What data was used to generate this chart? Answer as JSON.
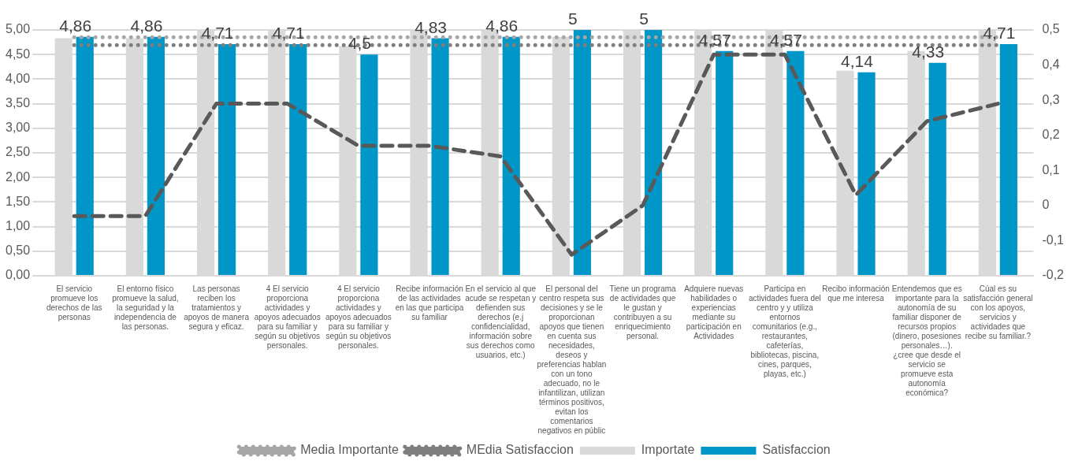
{
  "chart_data": {
    "type": "bar",
    "categories": [
      "El servicio promueve los derechos de las personas",
      "El entorno físico promueve la salud, la seguridad y la independencia de las personas.",
      "Las personas reciben los tratamientos y apoyos de manera segura y eficaz.",
      "4 El servicio proporciona actividades y apoyos adecuados para su familiar y según su objetivos personales.",
      "4 El servicio proporciona actividades y apoyos adecuados para su familiar y según su objetivos personales.",
      "Recibe información de las actividades en las que participa su familiar",
      "En el servicio al que acude se respetan y defienden sus derechos (e.j confidencialidad, información sobre sus derechos como usuarios, etc.)",
      "El personal del centro respeta sus decisiones y se le proporcionan apoyos que tienen en cuenta sus necesidades, deseos y preferencias hablan con un tono adecuado, no le infantilizan, utilizan términos positivos, evitan los comentarios negativos en públic",
      "Tiene un programa de actividades que le gustan y contribuyen a su enriquecimiento personal.",
      "Adquiere nuevas habilidades o experiencias mediante su participación en Actividades",
      "Participa en actividades fuera del centro y y utiliza entornos comunitarios (e.g., restaurantes, cafeterías, bibliotecas, piscina, cines, parques, playas, etc.)",
      "Recibo información que me interesa",
      "Entendemos  que es importante para la autonomía de su familiar disponer de recursos propios (dinero, posesiones personales…). ¿cree que desde el servicio se promueve esta autonomía económica?",
      "Cúal es su satisfacción general con los apoyos, servicios y actividades que recibe su familiar.?"
    ],
    "series": [
      {
        "name": "Importate",
        "color": "#d9d9d9",
        "values": [
          4.83,
          4.83,
          5,
          5,
          4.67,
          5,
          5,
          4.86,
          5,
          5,
          5,
          4.17,
          4.57,
          5
        ]
      },
      {
        "name": "Satisfaccion",
        "color": "#0096c8",
        "values": [
          4.86,
          4.86,
          4.71,
          4.71,
          4.5,
          4.83,
          4.86,
          5,
          5,
          4.57,
          4.57,
          4.14,
          4.33,
          4.71
        ],
        "value_labels": [
          "4,86",
          "4,86",
          "4,71",
          "4,71",
          "4,5",
          "4,83",
          "4,86",
          "5",
          "5",
          "4,57",
          "4,57",
          "4,14",
          "4,33",
          "4,71"
        ]
      },
      {
        "name": "Media Importante",
        "type": "line",
        "color": "#a6a6a6",
        "line_style": "dotted",
        "values": [
          4.85,
          4.85,
          4.85,
          4.85,
          4.85,
          4.85,
          4.85,
          4.85,
          4.85,
          4.85,
          4.85,
          4.85,
          4.85,
          4.85
        ]
      },
      {
        "name": "MEdia Satisfaccion",
        "type": "line",
        "color": "#7f7f7f",
        "line_style": "dotted",
        "values": [
          4.69,
          4.69,
          4.69,
          4.69,
          4.69,
          4.69,
          4.69,
          4.69,
          4.69,
          4.69,
          4.69,
          4.69,
          4.69,
          4.69
        ]
      },
      {
        "type": "line",
        "axis": "y2",
        "color": "#595959",
        "line_style": "dashed",
        "values": [
          -0.03,
          -0.03,
          0.29,
          0.29,
          0.17,
          0.17,
          0.14,
          -0.14,
          0,
          0.43,
          0.43,
          0.03,
          0.24,
          0.29
        ]
      }
    ],
    "ylim": [
      0,
      5
    ],
    "yticks": [
      {
        "value": 0,
        "label": "0,00"
      },
      {
        "value": 0.5,
        "label": "0,50"
      },
      {
        "value": 1,
        "label": "1,00"
      },
      {
        "value": 1.5,
        "label": "1,50"
      },
      {
        "value": 2,
        "label": "2,00"
      },
      {
        "value": 2.5,
        "label": "2,50"
      },
      {
        "value": 3,
        "label": "3,00"
      },
      {
        "value": 3.5,
        "label": "3,50"
      },
      {
        "value": 4,
        "label": "4,00"
      },
      {
        "value": 4.5,
        "label": "4,50"
      },
      {
        "value": 5,
        "label": "5,00"
      }
    ],
    "y2lim": [
      -0.2,
      0.5
    ],
    "y2ticks": [
      {
        "value": -0.2,
        "label": "-0,2"
      },
      {
        "value": -0.1,
        "label": "-0,1"
      },
      0,
      {
        "value": 0.1,
        "label": "0,1"
      },
      {
        "value": 0.2,
        "label": "0,2"
      },
      {
        "value": 0.3,
        "label": "0,3"
      },
      {
        "value": 0.4,
        "label": "0,4"
      },
      {
        "value": 0.5,
        "label": "0,5"
      }
    ],
    "grid": "y",
    "legend": "bottom",
    "marker": "none"
  }
}
